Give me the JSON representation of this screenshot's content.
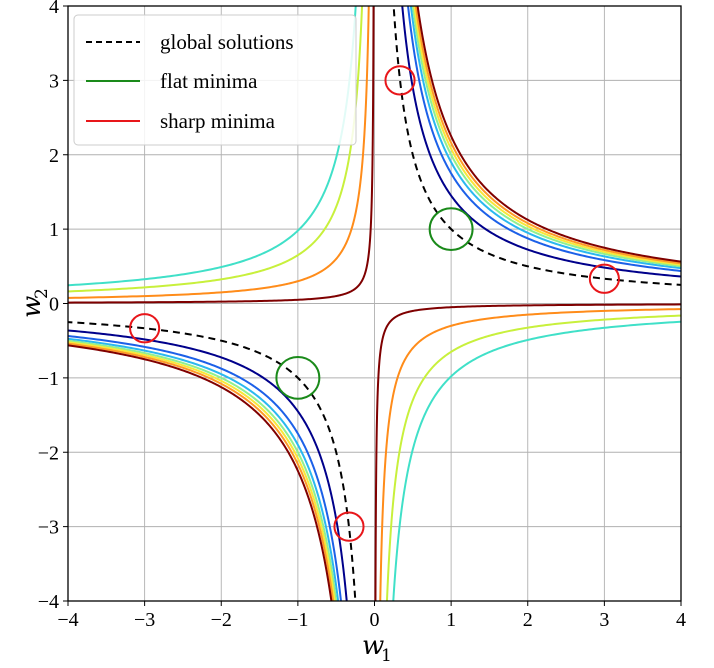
{
  "chart_data": {
    "type": "line",
    "title": "",
    "xlabel": "w",
    "xlabel_sub": "1",
    "ylabel": "w",
    "ylabel_sub": "2",
    "xlim": [
      -4,
      4
    ],
    "ylim": [
      -4,
      4
    ],
    "xticks": [
      -4,
      -3,
      -2,
      -1,
      0,
      1,
      2,
      3,
      4
    ],
    "yticks": [
      -4,
      -3,
      -2,
      -1,
      0,
      1,
      2,
      3,
      4
    ],
    "xtick_labels": [
      "−4",
      "−3",
      "−2",
      "−1",
      "0",
      "1",
      "2",
      "3",
      "4"
    ],
    "ytick_labels": [
      "−4",
      "−3",
      "−2",
      "−1",
      "0",
      "1",
      "2",
      "3",
      "4"
    ],
    "grid": true,
    "legend_position": "top-left",
    "legend": [
      {
        "label": "global solutions",
        "color": "#000000",
        "style": "dashed"
      },
      {
        "label": "flat minima",
        "color": "#1a8a1a",
        "style": "solid"
      },
      {
        "label": "sharp minima",
        "color": "#e8161a",
        "style": "solid"
      }
    ],
    "global_solution": {
      "product": 1,
      "color": "#000000"
    },
    "contours": [
      {
        "level": 0.02,
        "color": "#40e0c8"
      },
      {
        "level": 0.35,
        "color": "#c8f03c"
      },
      {
        "level": 0.7,
        "color": "#ff8c1a"
      },
      {
        "level": 0.95,
        "color": "#7f0000"
      },
      {
        "level": 1.45,
        "color": "#00008b"
      },
      {
        "level": 1.75,
        "color": "#1c60e8"
      },
      {
        "level": 1.9,
        "color": "#2ab8f0"
      },
      {
        "level": 2.0,
        "color": "#90f090"
      },
      {
        "level": 2.08,
        "color": "#f8e83a"
      },
      {
        "level": 2.16,
        "color": "#ff9a28"
      },
      {
        "level": 2.25,
        "color": "#800000"
      }
    ],
    "flat_minima": [
      {
        "x": 1,
        "y": 1,
        "radius": 0.28
      },
      {
        "x": -1,
        "y": -1,
        "radius": 0.28
      }
    ],
    "sharp_minima": [
      {
        "x": 0.333,
        "y": 3,
        "radius": 0.19
      },
      {
        "x": 3,
        "y": 0.333,
        "radius": 0.19
      },
      {
        "x": -3,
        "y": -0.333,
        "radius": 0.19
      },
      {
        "x": -0.333,
        "y": -3,
        "radius": 0.19
      }
    ]
  }
}
